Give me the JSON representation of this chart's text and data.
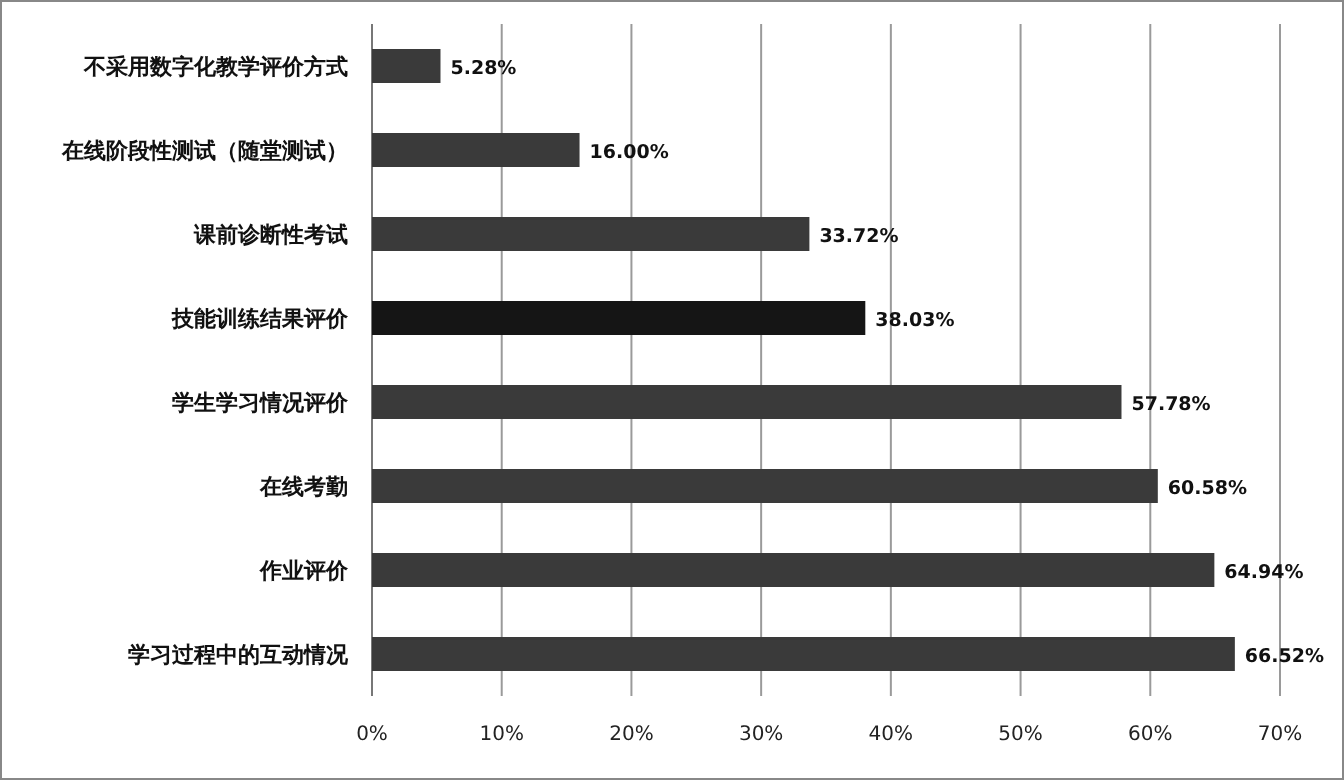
{
  "chart_data": {
    "type": "bar",
    "orientation": "horizontal",
    "categories": [
      "不采用数字化教学评价方式",
      "在线阶段性测试（随堂测试）",
      "课前诊断性考试",
      "技能训练结果评价",
      "学生学习情况评价",
      "在线考勤",
      "作业评价",
      "学习过程中的互动情况"
    ],
    "values": [
      5.28,
      16.0,
      33.72,
      38.03,
      57.78,
      60.58,
      64.94,
      66.52
    ],
    "value_labels": [
      "5.28%",
      "16.00%",
      "33.72%",
      "38.03%",
      "57.78%",
      "60.58%",
      "64.94%",
      "66.52%"
    ],
    "colors": [
      "#3a3a3a",
      "#3a3a3a",
      "#3a3a3a",
      "#151515",
      "#3a3a3a",
      "#3a3a3a",
      "#3a3a3a",
      "#3a3a3a"
    ],
    "xlim": [
      0,
      70
    ],
    "xticks": [
      {
        "value": 0,
        "label": "0%"
      },
      {
        "value": 10,
        "label": "10%"
      },
      {
        "value": 20,
        "label": "20%"
      },
      {
        "value": 30,
        "label": "30%"
      },
      {
        "value": 40,
        "label": "40%"
      },
      {
        "value": 50,
        "label": "50%"
      },
      {
        "value": 60,
        "label": "60%"
      },
      {
        "value": 70,
        "label": "70%"
      }
    ],
    "grid": "x"
  }
}
